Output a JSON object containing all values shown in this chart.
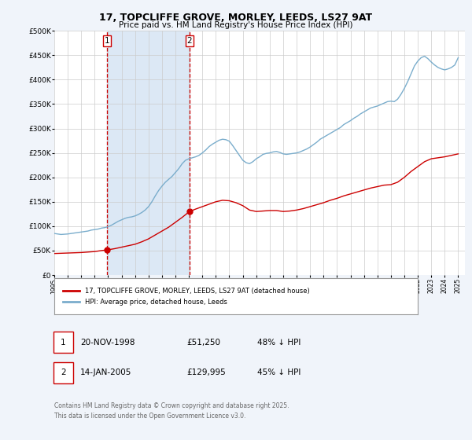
{
  "title": "17, TOPCLIFFE GROVE, MORLEY, LEEDS, LS27 9AT",
  "subtitle": "Price paid vs. HM Land Registry's House Price Index (HPI)",
  "background_color": "#f0f4fa",
  "plot_bg_color": "#ffffff",
  "grid_color": "#cccccc",
  "red_line_color": "#cc0000",
  "blue_line_color": "#7aadcc",
  "marker1_date": 1998.9,
  "marker1_value": 51250,
  "marker2_date": 2005.04,
  "marker2_value": 129995,
  "shade_color": "#dce8f5",
  "legend_label_red": "17, TOPCLIFFE GROVE, MORLEY, LEEDS, LS27 9AT (detached house)",
  "legend_label_blue": "HPI: Average price, detached house, Leeds",
  "table_row1": [
    "1",
    "20-NOV-1998",
    "£51,250",
    "48% ↓ HPI"
  ],
  "table_row2": [
    "2",
    "14-JAN-2005",
    "£129,995",
    "45% ↓ HPI"
  ],
  "footer": "Contains HM Land Registry data © Crown copyright and database right 2025.\nThis data is licensed under the Open Government Licence v3.0.",
  "ylim": [
    0,
    500000
  ],
  "xlim_start": 1995.0,
  "xlim_end": 2025.5,
  "hpi_data": {
    "dates": [
      1995.0,
      1995.25,
      1995.5,
      1995.75,
      1996.0,
      1996.25,
      1996.5,
      1996.75,
      1997.0,
      1997.25,
      1997.5,
      1997.75,
      1998.0,
      1998.25,
      1998.5,
      1998.75,
      1999.0,
      1999.25,
      1999.5,
      1999.75,
      2000.0,
      2000.25,
      2000.5,
      2000.75,
      2001.0,
      2001.25,
      2001.5,
      2001.75,
      2002.0,
      2002.25,
      2002.5,
      2002.75,
      2003.0,
      2003.25,
      2003.5,
      2003.75,
      2004.0,
      2004.25,
      2004.5,
      2004.75,
      2005.0,
      2005.25,
      2005.5,
      2005.75,
      2006.0,
      2006.25,
      2006.5,
      2006.75,
      2007.0,
      2007.25,
      2007.5,
      2007.75,
      2008.0,
      2008.25,
      2008.5,
      2008.75,
      2009.0,
      2009.25,
      2009.5,
      2009.75,
      2010.0,
      2010.25,
      2010.5,
      2010.75,
      2011.0,
      2011.25,
      2011.5,
      2011.75,
      2012.0,
      2012.25,
      2012.5,
      2012.75,
      2013.0,
      2013.25,
      2013.5,
      2013.75,
      2014.0,
      2014.25,
      2014.5,
      2014.75,
      2015.0,
      2015.25,
      2015.5,
      2015.75,
      2016.0,
      2016.25,
      2016.5,
      2016.75,
      2017.0,
      2017.25,
      2017.5,
      2017.75,
      2018.0,
      2018.25,
      2018.5,
      2018.75,
      2019.0,
      2019.25,
      2019.5,
      2019.75,
      2020.0,
      2020.25,
      2020.5,
      2020.75,
      2021.0,
      2021.25,
      2021.5,
      2021.75,
      2022.0,
      2022.25,
      2022.5,
      2022.75,
      2023.0,
      2023.25,
      2023.5,
      2023.75,
      2024.0,
      2024.25,
      2024.5,
      2024.75,
      2025.0
    ],
    "values": [
      85000,
      84000,
      83000,
      83500,
      84000,
      85000,
      86000,
      87000,
      88000,
      89000,
      90000,
      92000,
      93000,
      94000,
      96000,
      97000,
      99000,
      102000,
      106000,
      110000,
      113000,
      116000,
      118000,
      119000,
      121000,
      124000,
      128000,
      133000,
      140000,
      150000,
      162000,
      173000,
      182000,
      190000,
      196000,
      202000,
      210000,
      218000,
      228000,
      235000,
      238000,
      240000,
      242000,
      245000,
      250000,
      256000,
      263000,
      268000,
      272000,
      276000,
      278000,
      277000,
      274000,
      265000,
      255000,
      245000,
      235000,
      230000,
      228000,
      232000,
      238000,
      242000,
      247000,
      249000,
      250000,
      252000,
      253000,
      251000,
      248000,
      247000,
      248000,
      249000,
      250000,
      252000,
      255000,
      258000,
      262000,
      267000,
      272000,
      278000,
      282000,
      286000,
      290000,
      294000,
      298000,
      302000,
      308000,
      312000,
      316000,
      321000,
      325000,
      330000,
      334000,
      338000,
      342000,
      344000,
      346000,
      349000,
      352000,
      355000,
      356000,
      355000,
      360000,
      370000,
      382000,
      396000,
      412000,
      428000,
      438000,
      445000,
      448000,
      443000,
      436000,
      430000,
      425000,
      422000,
      420000,
      422000,
      425000,
      430000,
      445000
    ]
  },
  "red_data": {
    "dates": [
      1995.0,
      1995.5,
      1996.0,
      1996.5,
      1997.0,
      1997.5,
      1998.0,
      1998.5,
      1998.9,
      1999.5,
      2000.0,
      2000.5,
      2001.0,
      2001.5,
      2002.0,
      2002.5,
      2003.0,
      2003.5,
      2004.0,
      2004.5,
      2005.04,
      2005.5,
      2006.0,
      2006.5,
      2007.0,
      2007.5,
      2008.0,
      2008.5,
      2009.0,
      2009.5,
      2010.0,
      2010.5,
      2011.0,
      2011.5,
      2012.0,
      2012.5,
      2013.0,
      2013.5,
      2014.0,
      2014.5,
      2015.0,
      2015.5,
      2016.0,
      2016.5,
      2017.0,
      2017.5,
      2018.0,
      2018.5,
      2019.0,
      2019.5,
      2020.0,
      2020.5,
      2021.0,
      2021.5,
      2022.0,
      2022.5,
      2023.0,
      2023.5,
      2024.0,
      2024.5,
      2025.0
    ],
    "values": [
      44000,
      44500,
      45000,
      45500,
      46000,
      47000,
      48000,
      50000,
      51250,
      54000,
      57000,
      60000,
      63000,
      68000,
      74000,
      82000,
      90000,
      98000,
      108000,
      118000,
      129995,
      135000,
      140000,
      145000,
      150000,
      153000,
      152000,
      148000,
      142000,
      133000,
      130000,
      131000,
      132000,
      132000,
      130000,
      131000,
      133000,
      136000,
      140000,
      144000,
      148000,
      153000,
      157000,
      162000,
      166000,
      170000,
      174000,
      178000,
      181000,
      184000,
      185000,
      190000,
      200000,
      212000,
      222000,
      232000,
      238000,
      240000,
      242000,
      245000,
      248000
    ]
  }
}
